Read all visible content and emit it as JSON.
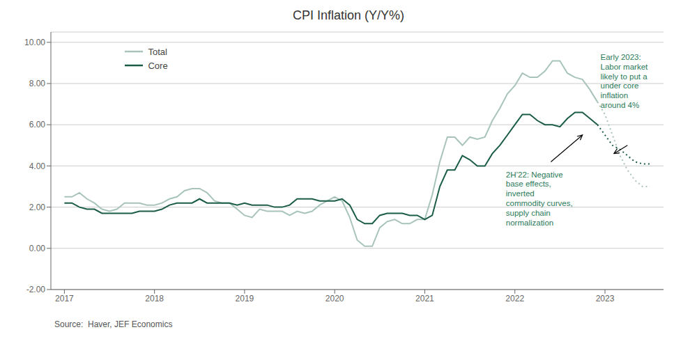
{
  "chart_data": {
    "type": "line",
    "title": "CPI Inflation (Y/Y%)",
    "source": "Source:  Haver, JEF Economics",
    "xlim": [
      2016.85,
      2023.65
    ],
    "xticks": [
      2017,
      2018,
      2019,
      2020,
      2021,
      2022,
      2023
    ],
    "ylim": [
      -2.0,
      10.5
    ],
    "yticks": [
      {
        "value": -2.0,
        "label": "-2.00"
      },
      {
        "value": 0.0,
        "label": "0.00"
      },
      {
        "value": 2.0,
        "label": "2.00"
      },
      {
        "value": 4.0,
        "label": "4.00"
      },
      {
        "value": 6.0,
        "label": "6.00"
      },
      {
        "value": 8.0,
        "label": "8.00"
      },
      {
        "value": 10.0,
        "label": "10.00"
      }
    ],
    "grid": true,
    "legend": "upper left",
    "series": [
      {
        "name": "Total",
        "color": "#a8c4b8",
        "line_style": "solid",
        "x": [
          2017.0,
          2017.083,
          2017.167,
          2017.25,
          2017.333,
          2017.417,
          2017.5,
          2017.583,
          2017.667,
          2017.75,
          2017.833,
          2017.917,
          2018.0,
          2018.083,
          2018.167,
          2018.25,
          2018.333,
          2018.417,
          2018.5,
          2018.583,
          2018.667,
          2018.75,
          2018.833,
          2018.917,
          2019.0,
          2019.083,
          2019.167,
          2019.25,
          2019.333,
          2019.417,
          2019.5,
          2019.583,
          2019.667,
          2019.75,
          2019.833,
          2019.917,
          2020.0,
          2020.083,
          2020.167,
          2020.25,
          2020.333,
          2020.417,
          2020.5,
          2020.583,
          2020.667,
          2020.75,
          2020.833,
          2020.917,
          2021.0,
          2021.083,
          2021.167,
          2021.25,
          2021.333,
          2021.417,
          2021.5,
          2021.583,
          2021.667,
          2021.75,
          2021.833,
          2021.917,
          2022.0,
          2022.083,
          2022.167,
          2022.25,
          2022.333,
          2022.417,
          2022.5,
          2022.583,
          2022.667,
          2022.75,
          2022.833,
          2022.917
        ],
        "values": [
          2.5,
          2.5,
          2.7,
          2.4,
          2.2,
          1.9,
          1.8,
          1.9,
          2.2,
          2.2,
          2.2,
          2.1,
          2.1,
          2.2,
          2.4,
          2.5,
          2.8,
          2.9,
          2.9,
          2.7,
          2.3,
          2.2,
          2.2,
          1.9,
          1.6,
          1.5,
          1.9,
          1.8,
          1.8,
          1.8,
          1.6,
          1.8,
          1.7,
          1.8,
          2.1,
          2.3,
          2.5,
          2.3,
          1.5,
          0.4,
          0.1,
          0.1,
          1.0,
          1.3,
          1.4,
          1.2,
          1.2,
          1.4,
          1.4,
          2.6,
          4.2,
          5.4,
          5.4,
          5.0,
          5.4,
          5.3,
          5.4,
          6.2,
          6.8,
          7.5,
          7.9,
          8.5,
          8.3,
          8.3,
          8.6,
          9.1,
          9.1,
          8.5,
          8.3,
          8.2,
          7.7,
          7.1
        ]
      },
      {
        "name": "Core",
        "color": "#1a5c45",
        "line_style": "solid",
        "x": [
          2017.0,
          2017.083,
          2017.167,
          2017.25,
          2017.333,
          2017.417,
          2017.5,
          2017.583,
          2017.667,
          2017.75,
          2017.833,
          2017.917,
          2018.0,
          2018.083,
          2018.167,
          2018.25,
          2018.333,
          2018.417,
          2018.5,
          2018.583,
          2018.667,
          2018.75,
          2018.833,
          2018.917,
          2019.0,
          2019.083,
          2019.167,
          2019.25,
          2019.333,
          2019.417,
          2019.5,
          2019.583,
          2019.667,
          2019.75,
          2019.833,
          2019.917,
          2020.0,
          2020.083,
          2020.167,
          2020.25,
          2020.333,
          2020.417,
          2020.5,
          2020.583,
          2020.667,
          2020.75,
          2020.833,
          2020.917,
          2021.0,
          2021.083,
          2021.167,
          2021.25,
          2021.333,
          2021.417,
          2021.5,
          2021.583,
          2021.667,
          2021.75,
          2021.833,
          2021.917,
          2022.0,
          2022.083,
          2022.167,
          2022.25,
          2022.333,
          2022.417,
          2022.5,
          2022.583,
          2022.667,
          2022.75,
          2022.833,
          2022.917
        ],
        "values": [
          2.2,
          2.2,
          2.0,
          1.9,
          1.9,
          1.7,
          1.7,
          1.7,
          1.7,
          1.7,
          1.8,
          1.8,
          1.8,
          1.9,
          2.1,
          2.2,
          2.2,
          2.2,
          2.4,
          2.2,
          2.2,
          2.2,
          2.2,
          2.1,
          2.2,
          2.1,
          2.1,
          2.1,
          2.0,
          2.0,
          2.1,
          2.4,
          2.4,
          2.4,
          2.3,
          2.3,
          2.3,
          2.4,
          2.1,
          1.4,
          1.2,
          1.2,
          1.6,
          1.7,
          1.7,
          1.7,
          1.6,
          1.6,
          1.4,
          1.6,
          3.0,
          3.8,
          3.8,
          4.5,
          4.3,
          4.0,
          4.0,
          4.6,
          5.0,
          5.5,
          6.0,
          6.5,
          6.5,
          6.2,
          6.0,
          6.0,
          5.9,
          6.3,
          6.6,
          6.6,
          6.3,
          6.0
        ]
      },
      {
        "color": "#a8c4b8",
        "line_style": "dotted",
        "x": [
          2022.917,
          2023.0,
          2023.083,
          2023.167,
          2023.25,
          2023.333,
          2023.417,
          2023.5
        ],
        "values": [
          7.1,
          6.5,
          5.5,
          4.5,
          3.8,
          3.3,
          3.0,
          3.0
        ]
      },
      {
        "color": "#1a5c45",
        "line_style": "dotted",
        "x": [
          2022.917,
          2023.0,
          2023.083,
          2023.167,
          2023.25,
          2023.333,
          2023.417,
          2023.5
        ],
        "values": [
          6.0,
          5.5,
          5.0,
          4.8,
          4.5,
          4.2,
          4.1,
          4.1
        ]
      }
    ],
    "annotations": [
      {
        "text": "2H’22: Negative\nbase effects,\ninverted\ncommodity curves,\nsupply chain\nnormalization",
        "x": 2021.9,
        "y": 3.8,
        "color": "#2a7a5a",
        "arrow": {
          "from": [
            2022.4,
            4.2
          ],
          "to": [
            2022.75,
            5.5
          ]
        }
      },
      {
        "text": "Early 2023:\nLabor market\nlikely to put a\nunder core\ninflation\naround 4%",
        "x": 2022.95,
        "y": 9.5,
        "color": "#2a7a5a",
        "arrow": {
          "from": [
            2023.25,
            5.0
          ],
          "to": [
            2023.1,
            4.6
          ]
        }
      }
    ]
  }
}
